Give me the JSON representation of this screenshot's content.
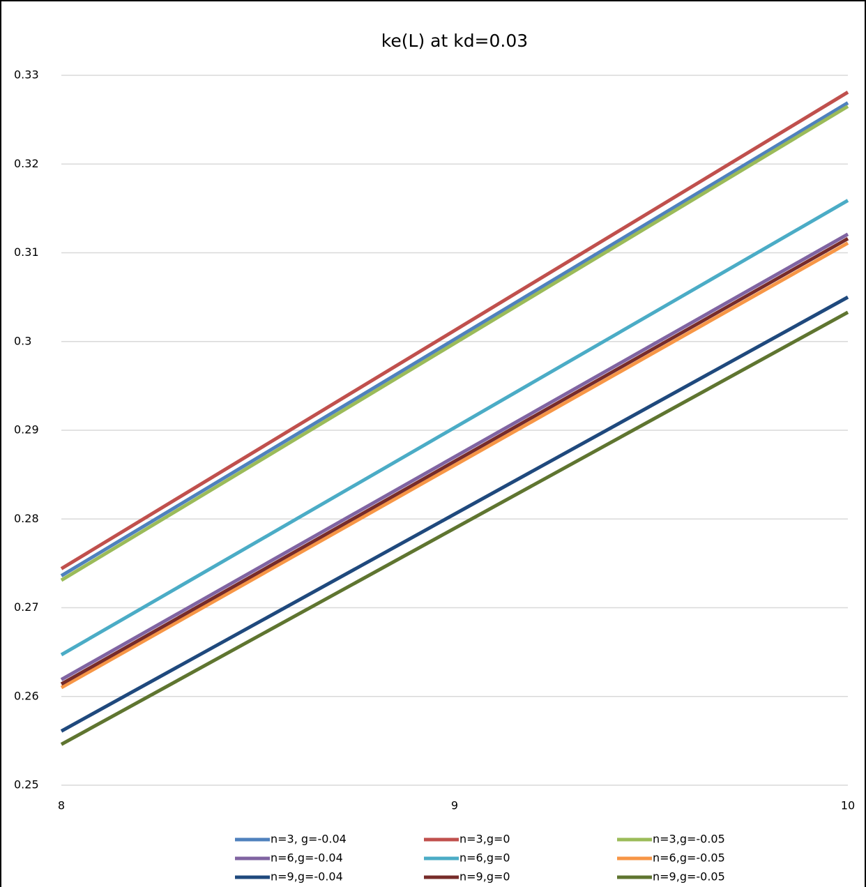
{
  "chart_data": {
    "type": "line",
    "title": "ke(L) at kd=0.03",
    "x": [
      8,
      10
    ],
    "xlim": [
      8,
      10
    ],
    "xticks": [
      8,
      9,
      10
    ],
    "ylim": [
      0.25,
      0.33
    ],
    "yticks": [
      0.25,
      0.26,
      0.27,
      0.28,
      0.29,
      0.3,
      0.31,
      0.32,
      0.33
    ],
    "grid": true,
    "legend": "bottom",
    "series": [
      {
        "name": "n=3, g=-0.04",
        "color": "#4f81bd",
        "values": [
          0.2736,
          0.3269
        ]
      },
      {
        "name": "n=3,g=0",
        "color": "#c0504d",
        "values": [
          0.2744,
          0.3281
        ]
      },
      {
        "name": "n=3,g=-0.05",
        "color": "#9bbb59",
        "values": [
          0.2731,
          0.3265
        ]
      },
      {
        "name": "n=6,g=-0.04",
        "color": "#8064a2",
        "values": [
          0.2619,
          0.3121
        ]
      },
      {
        "name": "n=6,g=0",
        "color": "#4bacc6",
        "values": [
          0.2647,
          0.3159
        ]
      },
      {
        "name": "n=6,g=-0.05",
        "color": "#f79646",
        "values": [
          0.261,
          0.3111
        ]
      },
      {
        "name": "n=9,g=-0.04",
        "color": "#1f497d",
        "values": [
          0.2561,
          0.305
        ]
      },
      {
        "name": "n=9,g=0",
        "color": "#772c2a",
        "values": [
          0.2614,
          0.3116
        ]
      },
      {
        "name": "n=9,g=-0.05",
        "color": "#5f7530",
        "values": [
          0.2546,
          0.3033
        ]
      }
    ]
  }
}
